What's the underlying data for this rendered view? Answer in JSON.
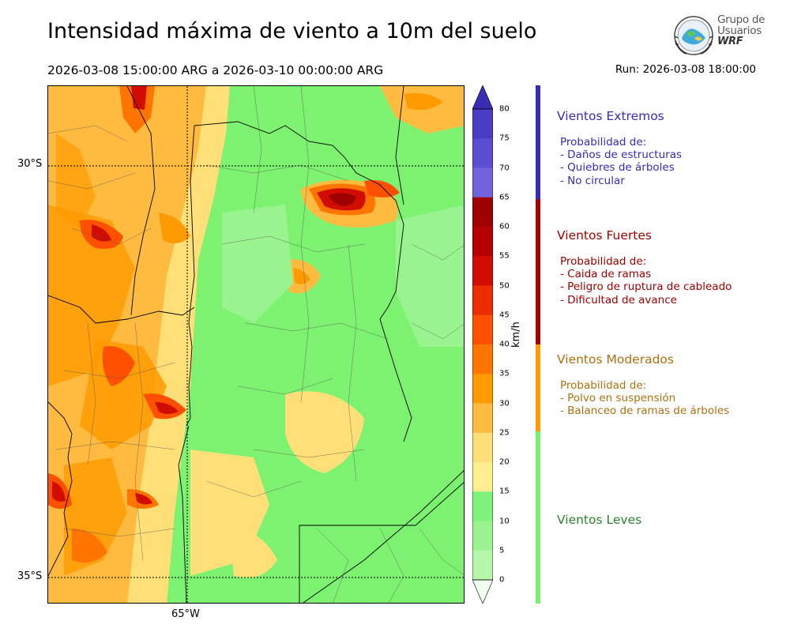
{
  "header": {
    "title": "Intensidad máxima de viento a 10m del suelo",
    "period": "2026-03-08 15:00:00 ARG  a  2026-03-10 00:00:00 ARG",
    "run": "Run: 2026-03-08 18:00:00"
  },
  "logo": {
    "line1": "Grupo de",
    "line2": "Usuarios",
    "line3": "WRF"
  },
  "map": {
    "lat_labels": [
      "30°S",
      "35°S"
    ],
    "lon_labels": [
      "65°W"
    ]
  },
  "colorbar": {
    "unit": "km/h",
    "ticks": [
      "80",
      "75",
      "70",
      "65",
      "60",
      "55",
      "50",
      "45",
      "40",
      "35",
      "30",
      "25",
      "20",
      "15",
      "10",
      "5",
      "0"
    ],
    "colors": [
      "#3b2db3",
      "#4a3cc5",
      "#5b4ed2",
      "#7262de",
      "#9e0000",
      "#b60000",
      "#d10c00",
      "#ed2d00",
      "#ff5000",
      "#ff7500",
      "#ff9a00",
      "#ffbb40",
      "#ffe078",
      "#ffee90",
      "#7ef27a",
      "#99f490",
      "#b6f7ab",
      "#cdfac4",
      "#e1fcd9",
      "#f1fef0"
    ]
  },
  "legend": {
    "extremos": {
      "title": "Vientos Extremos",
      "lines": [
        "Probabilidad de:",
        "- Daños de estructuras",
        "- Quiebres de árboles",
        "- No circular"
      ],
      "color": "#3a2ab5"
    },
    "fuertes": {
      "title": "Vientos Fuertes",
      "lines": [
        "Probabilidad de:",
        "- Caida de ramas",
        "- Peligro de ruptura de cableado",
        "- Dificultad de avance"
      ],
      "color": "#a00000"
    },
    "moderados": {
      "title": "Vientos Moderados",
      "lines": [
        "Probabilidad de:",
        "- Polvo en suspensión",
        "- Balanceo de ramas de árboles"
      ],
      "color": "#b07010"
    },
    "leves": {
      "title": "Vientos Leves",
      "color": "#2f7f2f"
    },
    "bar_colors": {
      "extremos": "#3a2ab5",
      "fuertes": "#a80000",
      "moderados": "#ff9a00",
      "leves": "#78f070"
    }
  }
}
